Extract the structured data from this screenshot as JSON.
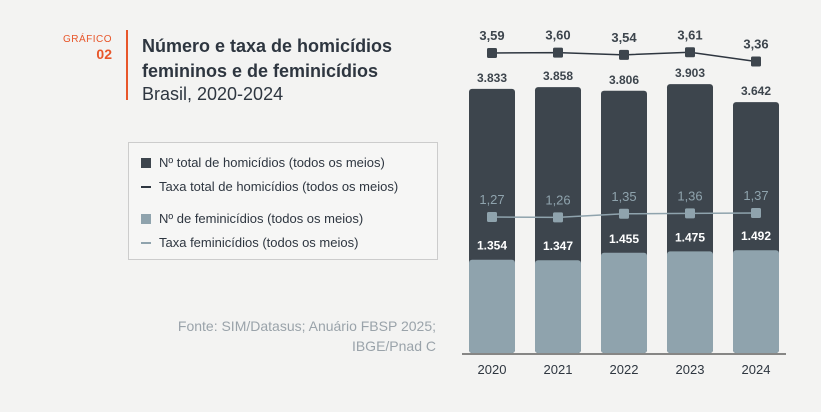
{
  "header": {
    "label": "GRÁFICO",
    "number": "02",
    "title": "Número e taxa de homicídios femininos e de feminicídios",
    "subtitle": "Brasil, 2020-2024"
  },
  "legend": [
    "Nº total de homicídios (todos os meios)",
    "Taxa total de homicídios (todos os meios)",
    "Nº de feminicídios (todos os meios)",
    "Taxa feminicídios (todos os meios)"
  ],
  "source": "Fonte: SIM/Datasus; Anuário FBSP 2025; IBGE/Pnad C",
  "colors": {
    "dark": "#3d454d",
    "light": "#8fa3ad",
    "accent": "#e8562a"
  },
  "chart_data": {
    "type": "bar",
    "categories": [
      "2020",
      "2021",
      "2022",
      "2023",
      "2024"
    ],
    "series": [
      {
        "name": "Nº total de homicídios (todos os meios)",
        "type": "bar",
        "values": [
          3833,
          3858,
          3806,
          3903,
          3642
        ],
        "labels": [
          "3.833",
          "3.858",
          "3.806",
          "3.903",
          "3.642"
        ]
      },
      {
        "name": "Nº de feminicídios (todos os meios)",
        "type": "bar",
        "values": [
          1354,
          1347,
          1455,
          1475,
          1492
        ],
        "labels": [
          "1.354",
          "1.347",
          "1.455",
          "1.475",
          "1.492"
        ]
      },
      {
        "name": "Taxa total de homicídios (todos os meios)",
        "type": "line",
        "values": [
          3.59,
          3.6,
          3.54,
          3.61,
          3.36
        ],
        "labels": [
          "3,59",
          "3,60",
          "3,54",
          "3,61",
          "3,36"
        ]
      },
      {
        "name": "Taxa feminicídios (todos os meios)",
        "type": "line",
        "values": [
          1.27,
          1.26,
          1.35,
          1.36,
          1.37
        ],
        "labels": [
          "1,27",
          "1,26",
          "1,35",
          "1,36",
          "1,37"
        ]
      }
    ]
  }
}
